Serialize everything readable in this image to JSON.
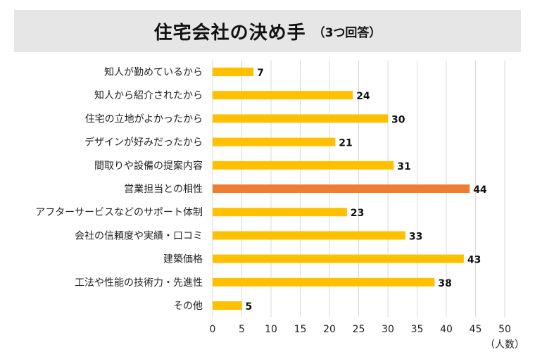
{
  "title": "住宅会社の決め手",
  "subtitle": "（3つ回答）",
  "chart_data": {
    "type": "bar",
    "orientation": "horizontal",
    "categories": [
      "知人が勤めているから",
      "知人から紹介されたから",
      "住宅の立地がよかったから",
      "デザインが好みだったから",
      "間取りや設備の提案内容",
      "営業担当との相性",
      "アフターサービスなどのサポート体制",
      "会社の信頼度や実績・口コミ",
      "建築価格",
      "工法や性能の技術力・先進性",
      "その他"
    ],
    "values": [
      7,
      24,
      30,
      21,
      31,
      44,
      23,
      33,
      43,
      38,
      5
    ],
    "highlight_index": 5,
    "xlim": [
      0,
      50
    ],
    "xticks": [
      0,
      5,
      10,
      15,
      20,
      25,
      30,
      35,
      40,
      45,
      50
    ],
    "xunit": "（人数）",
    "grid": "vertical",
    "colors": {
      "bar": "#ffc000",
      "highlight": "#ed7d31",
      "grid": "#d9d9d9"
    }
  }
}
